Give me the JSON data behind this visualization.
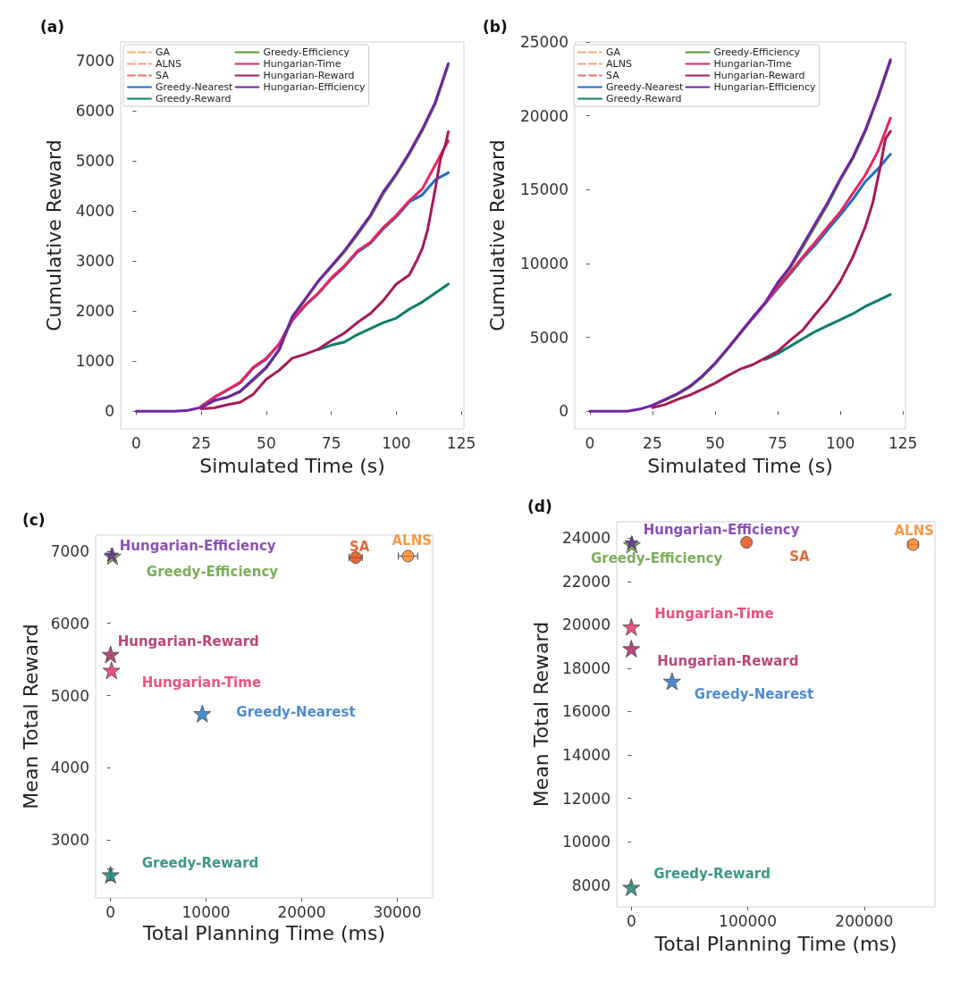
{
  "chart_data": [
    {
      "type": "line",
      "title": "(a)",
      "xlabel": "Simulated Time (s)",
      "ylabel": "Cumulative Reward",
      "x": [
        0,
        5,
        10,
        15,
        20,
        25,
        30,
        35,
        40,
        45,
        50,
        55,
        60,
        65,
        70,
        75,
        80,
        85,
        90,
        95,
        100,
        105,
        110,
        115,
        120
      ],
      "xlim": [
        -6,
        126
      ],
      "xticks": [
        0,
        25,
        50,
        75,
        100,
        125
      ],
      "ylim": [
        -350,
        7370
      ],
      "yticks": [
        0,
        1000,
        2000,
        3000,
        4000,
        5000,
        6000,
        7000
      ],
      "legend": "top left",
      "grid": false,
      "marker": "none",
      "series": [
        {
          "name": "GA",
          "color": "#fdae6b",
          "line_style": "dashed",
          "values": [
            null,
            null,
            null,
            null,
            null,
            null,
            null,
            null,
            null,
            null,
            null,
            null,
            null,
            null,
            null,
            null,
            null,
            null,
            null,
            null,
            null,
            null,
            null,
            null,
            null
          ]
        },
        {
          "name": "ALNS",
          "color": "#f4a07a",
          "line_style": "dashed",
          "values": [
            null,
            null,
            null,
            null,
            null,
            null,
            null,
            null,
            null,
            null,
            null,
            null,
            null,
            null,
            null,
            null,
            null,
            null,
            null,
            null,
            null,
            null,
            null,
            null,
            null
          ]
        },
        {
          "name": "SA",
          "color": "#ee7070",
          "line_style": "dashed",
          "values": [
            null,
            null,
            null,
            null,
            null,
            null,
            null,
            null,
            null,
            null,
            null,
            null,
            null,
            null,
            null,
            null,
            null,
            null,
            null,
            null,
            null,
            null,
            null,
            null,
            null
          ]
        },
        {
          "name": "Greedy-Nearest",
          "color": "#1f6fc5",
          "line_style": "solid",
          "values": [
            null,
            null,
            null,
            null,
            null,
            100,
            280,
            420,
            570,
            860,
            1040,
            1340,
            1810,
            2110,
            2350,
            2640,
            2880,
            3170,
            3350,
            3640,
            3880,
            4180,
            4320,
            4620,
            4760
          ]
        },
        {
          "name": "Greedy-Reward",
          "color": "#0b7d6b",
          "line_style": "solid",
          "values": [
            null,
            null,
            null,
            null,
            null,
            null,
            null,
            null,
            null,
            null,
            null,
            null,
            null,
            null,
            1230,
            1320,
            1380,
            1530,
            1650,
            1770,
            1860,
            2040,
            2180,
            2360,
            2540
          ]
        },
        {
          "name": "Greedy-Efficiency",
          "color": "#5a9a32",
          "line_style": "solid",
          "values": [
            null,
            null,
            null,
            null,
            null,
            70,
            210,
            280,
            390,
            620,
            860,
            1220,
            1870,
            2230,
            2590,
            2880,
            3180,
            3520,
            3880,
            4340,
            4720,
            5130,
            5600,
            6140,
            6920
          ]
        },
        {
          "name": "Hungarian-Time",
          "color": "#e8265e",
          "line_style": "solid",
          "values": [
            null,
            null,
            null,
            null,
            null,
            100,
            280,
            430,
            580,
            880,
            1060,
            1350,
            1830,
            2120,
            2360,
            2660,
            2900,
            3200,
            3370,
            3670,
            3910,
            4200,
            4440,
            4920,
            5400
          ]
        },
        {
          "name": "Hungarian-Reward",
          "color": "#a6195a",
          "line_style": "solid",
          "x": [
            25,
            30,
            35,
            40,
            45,
            50,
            55,
            60,
            65,
            70,
            75,
            80,
            85,
            90,
            95,
            100,
            105,
            108,
            110,
            112,
            115,
            117,
            119,
            120
          ],
          "values": [
            50,
            70,
            130,
            180,
            340,
            640,
            820,
            1060,
            1140,
            1240,
            1410,
            1560,
            1770,
            1950,
            2210,
            2540,
            2720,
            3020,
            3250,
            3610,
            4440,
            5040,
            5340,
            5580
          ]
        },
        {
          "name": "Hungarian-Efficiency",
          "color": "#7222a6",
          "line_style": "solid",
          "values": [
            0,
            0,
            0,
            0,
            20,
            80,
            220,
            280,
            400,
            640,
            880,
            1240,
            1890,
            2240,
            2600,
            2900,
            3200,
            3550,
            3910,
            4380,
            4740,
            5160,
            5630,
            6170,
            6940
          ]
        }
      ]
    },
    {
      "type": "line",
      "title": "(b)",
      "xlabel": "Simulated Time (s)",
      "ylabel": "Cumulative Reward",
      "x": [
        0,
        5,
        10,
        15,
        20,
        25,
        30,
        35,
        40,
        45,
        50,
        55,
        60,
        65,
        70,
        75,
        80,
        85,
        90,
        95,
        100,
        105,
        110,
        115,
        120
      ],
      "xlim": [
        -6,
        126
      ],
      "xticks": [
        0,
        25,
        50,
        75,
        100,
        125
      ],
      "ylim": [
        -1190,
        25000
      ],
      "yticks": [
        0,
        5000,
        10000,
        15000,
        20000,
        25000
      ],
      "legend": "top left",
      "grid": false,
      "marker": "none",
      "series": [
        {
          "name": "GA",
          "color": "#fdae6b",
          "line_style": "dashed",
          "values": [
            null,
            null,
            null,
            null,
            null,
            null,
            null,
            null,
            null,
            null,
            null,
            null,
            null,
            null,
            null,
            null,
            null,
            null,
            null,
            null,
            null,
            null,
            null,
            null,
            null
          ]
        },
        {
          "name": "ALNS",
          "color": "#f4a07a",
          "line_style": "dashed",
          "values": [
            null,
            null,
            null,
            null,
            null,
            null,
            null,
            null,
            null,
            null,
            null,
            null,
            null,
            null,
            null,
            null,
            null,
            null,
            null,
            null,
            null,
            null,
            null,
            null,
            null
          ]
        },
        {
          "name": "SA",
          "color": "#ee7070",
          "line_style": "dashed",
          "values": [
            null,
            null,
            null,
            null,
            null,
            null,
            null,
            null,
            null,
            null,
            null,
            null,
            null,
            null,
            null,
            null,
            null,
            null,
            null,
            null,
            null,
            null,
            null,
            null,
            null
          ]
        },
        {
          "name": "Greedy-Nearest",
          "color": "#1f6fc5",
          "line_style": "solid",
          "values": [
            null,
            null,
            null,
            null,
            null,
            null,
            null,
            null,
            null,
            null,
            null,
            null,
            null,
            6300,
            7300,
            8300,
            9300,
            10350,
            11250,
            12300,
            13300,
            14350,
            15550,
            16400,
            17400
          ]
        },
        {
          "name": "Greedy-Reward",
          "color": "#0b7d6b",
          "line_style": "solid",
          "values": [
            null,
            null,
            null,
            null,
            null,
            null,
            null,
            null,
            null,
            null,
            null,
            null,
            null,
            null,
            3500,
            3900,
            4400,
            4900,
            5400,
            5800,
            6200,
            6600,
            7100,
            7500,
            7900
          ]
        },
        {
          "name": "Greedy-Efficiency",
          "color": "#5a9a32",
          "line_style": "solid",
          "values": [
            null,
            null,
            null,
            null,
            null,
            400,
            750,
            1150,
            1650,
            2350,
            3200,
            4200,
            5250,
            6300,
            7300,
            8600,
            9700,
            11100,
            12550,
            14000,
            15650,
            17100,
            18950,
            21200,
            23700
          ]
        },
        {
          "name": "Hungarian-Time",
          "color": "#e8265e",
          "line_style": "solid",
          "values": [
            null,
            null,
            null,
            null,
            null,
            null,
            null,
            null,
            null,
            null,
            null,
            null,
            5300,
            6300,
            7300,
            8400,
            9400,
            10450,
            11450,
            12500,
            13500,
            14750,
            16000,
            17600,
            19850
          ]
        },
        {
          "name": "Hungarian-Reward",
          "color": "#a6195a",
          "line_style": "solid",
          "x": [
            25,
            30,
            35,
            40,
            45,
            50,
            55,
            60,
            65,
            70,
            75,
            80,
            85,
            90,
            95,
            100,
            105,
            110,
            113,
            116,
            118,
            120
          ],
          "values": [
            250,
            450,
            800,
            1100,
            1500,
            1900,
            2400,
            2850,
            3150,
            3600,
            4050,
            4800,
            5500,
            6550,
            7550,
            8800,
            10450,
            12500,
            14150,
            16600,
            18450,
            18950
          ]
        },
        {
          "name": "Hungarian-Efficiency",
          "color": "#7222a6",
          "line_style": "solid",
          "values": [
            0,
            0,
            0,
            0,
            150,
            400,
            800,
            1200,
            1700,
            2400,
            3250,
            4250,
            5300,
            6350,
            7350,
            8700,
            9800,
            11250,
            12700,
            14150,
            15750,
            17200,
            19050,
            21300,
            23800
          ]
        }
      ]
    },
    {
      "type": "scatter",
      "title": "(c)",
      "xlabel": "Total Planning Time (ms)",
      "ylabel": "Mean Total Reward",
      "xlim": [
        -1560,
        33700
      ],
      "xticks": [
        0,
        10000,
        20000,
        30000
      ],
      "ylim": [
        2200,
        7220
      ],
      "yticks": [
        3000,
        4000,
        5000,
        6000,
        7000
      ],
      "grid": false,
      "series": [
        {
          "name": "SA",
          "color": "#e0440e",
          "marker": "circle",
          "x": [
            25650
          ],
          "values": [
            6910
          ],
          "xerrors": [
            700
          ]
        },
        {
          "name": "ALNS",
          "color": "#f7801c",
          "marker": "circle",
          "x": [
            31125
          ],
          "values": [
            6930
          ],
          "xerrors": [
            1015
          ]
        },
        {
          "name": "Greedy-Nearest",
          "color": "#1f6fc5",
          "marker": "star",
          "x": [
            9600
          ],
          "values": [
            4750
          ]
        },
        {
          "name": "Greedy-Reward",
          "color": "#0b7d6b",
          "marker": "star",
          "x": [
            0
          ],
          "values": [
            2520
          ],
          "errors": [
            80
          ]
        },
        {
          "name": "Greedy-Efficiency",
          "color": "#5a9a32",
          "marker": "star",
          "x": [
            200
          ],
          "values": [
            6930
          ]
        },
        {
          "name": "Hungarian-Time",
          "color": "#e8265e",
          "marker": "star",
          "x": [
            100
          ],
          "values": [
            5350
          ]
        },
        {
          "name": "Hungarian-Reward",
          "color": "#a6195a",
          "marker": "star",
          "x": [
            0
          ],
          "values": [
            5570
          ]
        },
        {
          "name": "Hungarian-Efficiency",
          "color": "#7222a6",
          "marker": "star",
          "x": [
            100
          ],
          "values": [
            6950
          ]
        }
      ]
    },
    {
      "type": "scatter",
      "title": "(d)",
      "xlabel": "Total Planning Time (ms)",
      "ylabel": "Mean Total Reward",
      "xlim": [
        -12500,
        260800
      ],
      "xticks": [
        0,
        100000,
        200000
      ],
      "ylim": [
        7000,
        24750
      ],
      "yticks": [
        8000,
        10000,
        12000,
        14000,
        16000,
        18000,
        20000,
        22000,
        24000
      ],
      "grid": false,
      "series": [
        {
          "name": "SA",
          "color": "#e0440e",
          "marker": "circle",
          "x": [
            99000
          ],
          "values": [
            23800
          ]
        },
        {
          "name": "ALNS",
          "color": "#f7801c",
          "marker": "circle",
          "x": [
            242000
          ],
          "values": [
            23700
          ],
          "xerrors": [
            4500
          ]
        },
        {
          "name": "Greedy-Nearest",
          "color": "#1f6fc5",
          "marker": "star",
          "x": [
            35000
          ],
          "values": [
            17400
          ]
        },
        {
          "name": "Greedy-Reward",
          "color": "#0b7d6b",
          "marker": "star",
          "x": [
            0
          ],
          "values": [
            7900
          ]
        },
        {
          "name": "Greedy-Efficiency",
          "color": "#5a9a32",
          "marker": "star",
          "x": [
            500
          ],
          "values": [
            23700
          ]
        },
        {
          "name": "Hungarian-Time",
          "color": "#e8265e",
          "marker": "star",
          "x": [
            0
          ],
          "values": [
            19900
          ]
        },
        {
          "name": "Hungarian-Reward",
          "color": "#a6195a",
          "marker": "star",
          "x": [
            0
          ],
          "values": [
            18900
          ]
        },
        {
          "name": "Hungarian-Efficiency",
          "color": "#7222a6",
          "marker": "star",
          "x": [
            300
          ],
          "values": [
            23800
          ]
        }
      ]
    }
  ]
}
